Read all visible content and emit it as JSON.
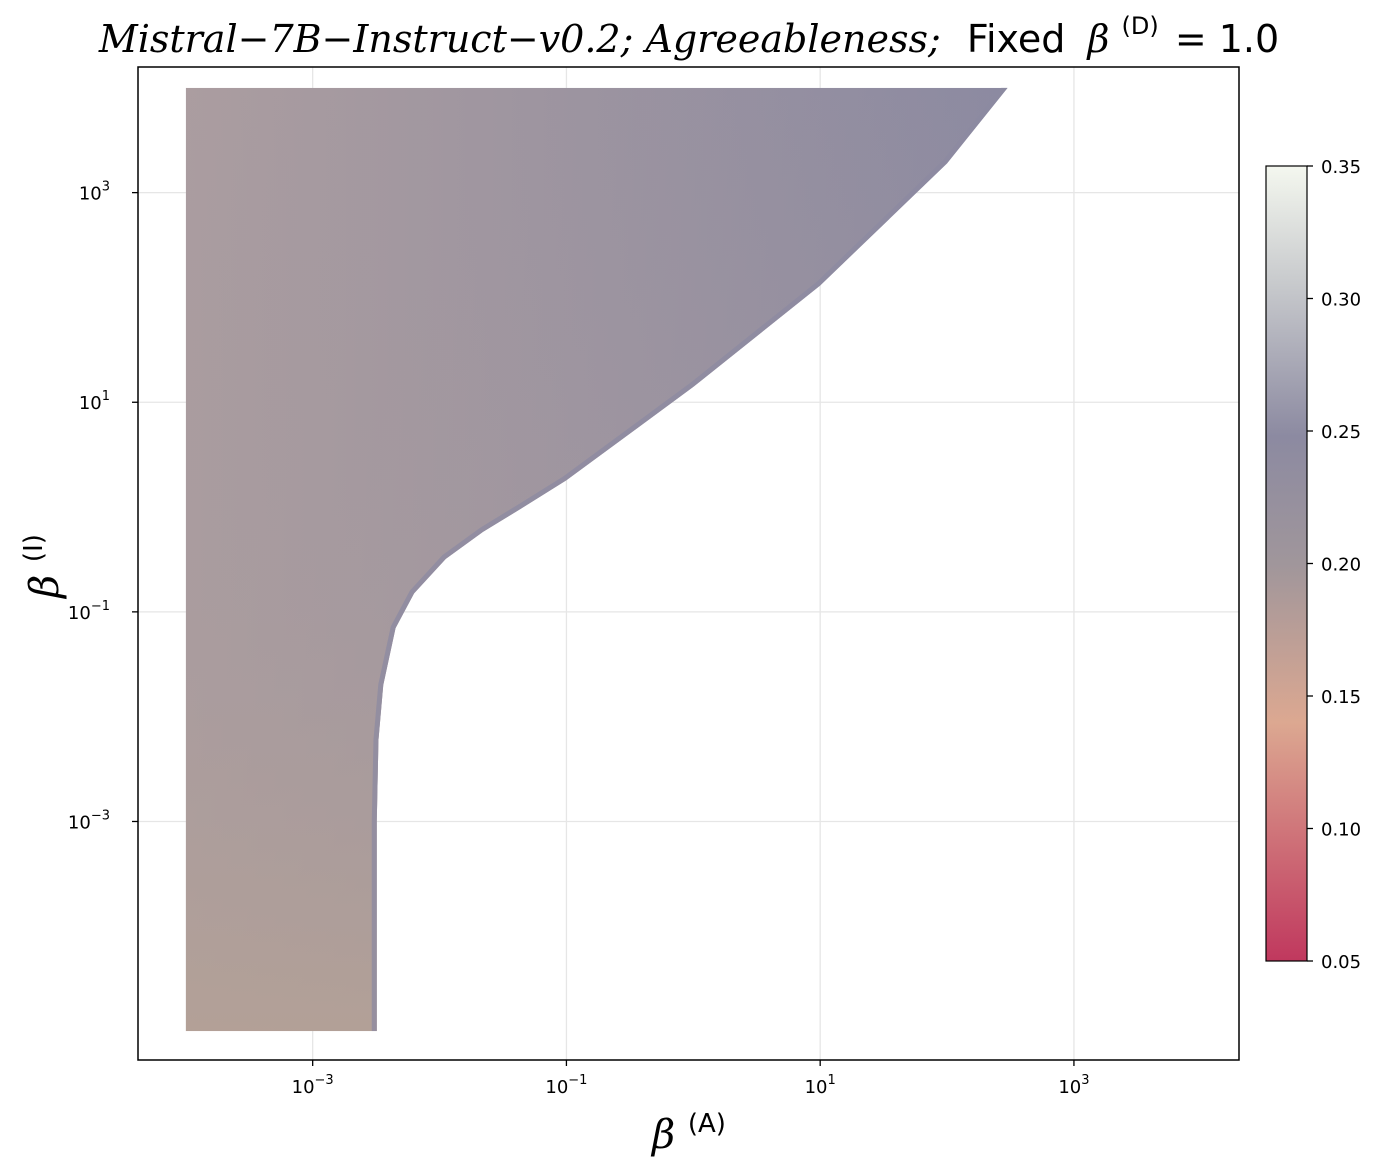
{
  "chart_data": {
    "type": "heatmap",
    "title": {
      "italic_part": "Mistral−7B−Instruct−v0.2;  Agreeableness;",
      "plain_part": "Fixed",
      "beta_symbol": "β",
      "superscript": "(D)",
      "equals_value": "= 1.0"
    },
    "xlabel": {
      "symbol": "β",
      "superscript": "(A)"
    },
    "ylabel": {
      "symbol": "β",
      "superscript": "(I)"
    },
    "x_scale": "log",
    "y_scale": "log",
    "xlim": [
      4.2e-05,
      20000
    ],
    "ylim": [
      5.3e-06,
      15800
    ],
    "x_ticks": [
      {
        "value": 0.001,
        "base": "10",
        "exp": "−3"
      },
      {
        "value": 0.1,
        "base": "10",
        "exp": "−1"
      },
      {
        "value": 10,
        "base": "10",
        "exp": "1"
      },
      {
        "value": 1000,
        "base": "10",
        "exp": "3"
      }
    ],
    "y_ticks": [
      {
        "value": 0.001,
        "base": "10",
        "exp": "−3"
      },
      {
        "value": 0.1,
        "base": "10",
        "exp": "−1"
      },
      {
        "value": 10,
        "base": "10",
        "exp": "1"
      },
      {
        "value": 1000,
        "base": "10",
        "exp": "3"
      }
    ],
    "grid": true,
    "data_domain": {
      "x_range": [
        0.0001,
        300
      ],
      "y_range": [
        1e-05,
        10000
      ],
      "boundary": [
        {
          "x": 0.0032,
          "y": 1e-05
        },
        {
          "x": 0.0032,
          "y": 0.001
        },
        {
          "x": 0.0033,
          "y": 0.006
        },
        {
          "x": 0.0036,
          "y": 0.02
        },
        {
          "x": 0.0045,
          "y": 0.07
        },
        {
          "x": 0.0063,
          "y": 0.15
        },
        {
          "x": 0.0112,
          "y": 0.32
        },
        {
          "x": 0.022,
          "y": 0.58
        },
        {
          "x": 0.046,
          "y": 1.0
        },
        {
          "x": 0.1,
          "y": 1.8
        },
        {
          "x": 1,
          "y": 14
        },
        {
          "x": 10,
          "y": 130
        },
        {
          "x": 100,
          "y": 1900
        },
        {
          "x": 300,
          "y": 10000
        }
      ]
    },
    "color_values": {
      "far_left_bottom": 0.195,
      "interior": 0.225,
      "near_boundary": 0.25
    },
    "colorbar": {
      "range": [
        0.05,
        0.35
      ],
      "ticks": [
        "0.35",
        "0.30",
        "0.25",
        "0.20",
        "0.15",
        "0.10",
        "0.05"
      ],
      "colors": [
        "#c0385e",
        "#dca891",
        "#a0969b",
        "#8c8aa1",
        "#c7c9cc",
        "#f4f7ef"
      ]
    }
  }
}
